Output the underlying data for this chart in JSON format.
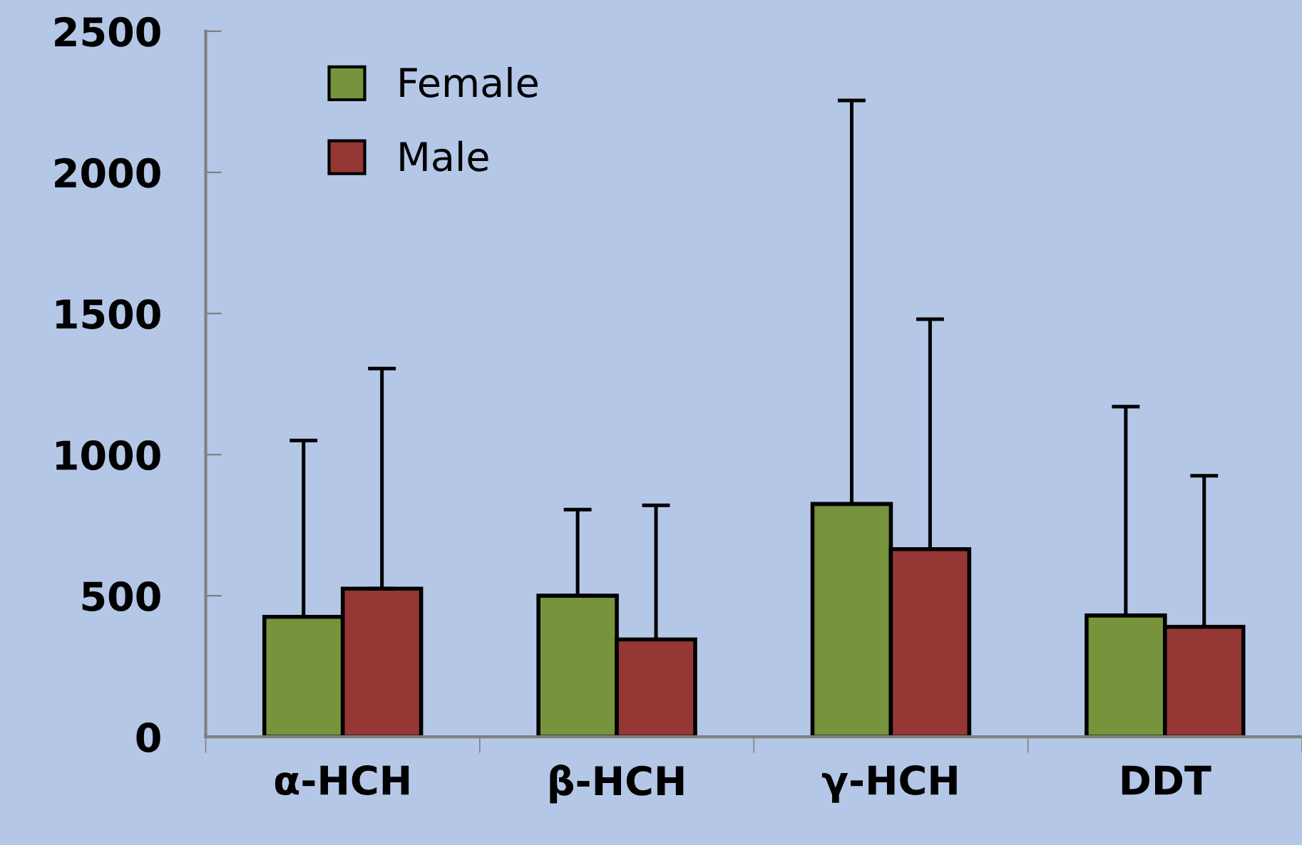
{
  "chart_data": {
    "type": "bar",
    "categories": [
      "α-HCH",
      "β-HCH",
      "γ-HCH",
      "DDT"
    ],
    "series": [
      {
        "name": "Female",
        "color": "#77933c",
        "values": [
          425,
          500,
          825,
          430
        ],
        "errors": [
          [
            425,
            1050
          ],
          [
            500,
            805
          ],
          [
            825,
            2255
          ],
          [
            430,
            1170
          ]
        ]
      },
      {
        "name": "Male",
        "color": "#953735",
        "values": [
          525,
          345,
          665,
          390
        ],
        "errors": [
          [
            525,
            1305
          ],
          [
            345,
            820
          ],
          [
            665,
            1480
          ],
          [
            390,
            925
          ]
        ]
      }
    ],
    "ylim": [
      0,
      2500
    ],
    "yticks": [
      0,
      500,
      1000,
      1500,
      2000,
      2500
    ],
    "grid": false,
    "legend": "top left"
  }
}
